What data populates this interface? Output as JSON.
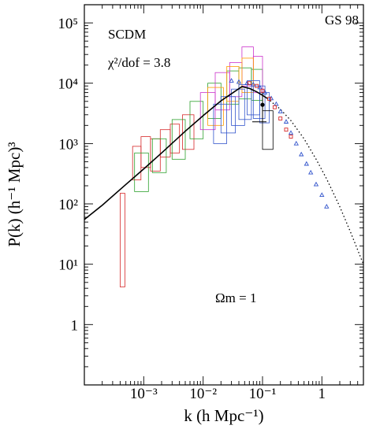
{
  "chart_data": {
    "type": "line",
    "title": "",
    "xlabel": "k (h Mpc⁻¹)",
    "ylabel": "P(k) (h⁻¹ Mpc)³",
    "x_scale": "log",
    "y_scale": "log",
    "xlim": [
      0.0001,
      5
    ],
    "ylim": [
      0.1,
      200000
    ],
    "grid": false,
    "x_ticks": [
      {
        "value": 0.001,
        "label": "10⁻³"
      },
      {
        "value": 0.01,
        "label": "10⁻²"
      },
      {
        "value": 0.1,
        "label": "10⁻¹"
      },
      {
        "value": 1,
        "label": "1"
      }
    ],
    "y_ticks": [
      {
        "value": 1,
        "label": "1"
      },
      {
        "value": 10,
        "label": "10¹"
      },
      {
        "value": 100,
        "label": "10²"
      },
      {
        "value": 1000,
        "label": "10³"
      },
      {
        "value": 10000,
        "label": "10⁴"
      },
      {
        "value": 100000,
        "label": "10⁵"
      }
    ],
    "annotations": {
      "model": "SCDM",
      "chi2": "χ²/dof = 3.8",
      "corner": "GS 98",
      "omega": "Ωm = 1"
    },
    "series": [
      {
        "style": "solid",
        "x": [
          0.0001,
          0.0002,
          0.0005,
          0.001,
          0.002,
          0.005,
          0.01,
          0.02,
          0.03,
          0.045,
          0.06,
          0.08,
          0.1,
          0.12
        ],
        "y": [
          55,
          95,
          210,
          380,
          700,
          1600,
          2900,
          5100,
          6700,
          8800,
          8200,
          7200,
          6300,
          5600
        ]
      },
      {
        "style": "dotted",
        "x": [
          0.12,
          0.2,
          0.3,
          0.5,
          0.8,
          1.2,
          2,
          3,
          5
        ],
        "y": [
          5600,
          3700,
          2400,
          1200,
          550,
          260,
          90,
          35,
          10
        ]
      }
    ],
    "error_boxes": [
      {
        "x": [
          0.0004,
          0.00048
        ],
        "y": [
          4.2,
          150
        ],
        "color": "#d62728"
      },
      {
        "x": [
          0.00065,
          0.0009
        ],
        "y": [
          250,
          900
        ],
        "color": "#d62728"
      },
      {
        "x": [
          0.0009,
          0.0013
        ],
        "y": [
          400,
          1300
        ],
        "color": "#d62728"
      },
      {
        "x": [
          0.0013,
          0.0019
        ],
        "y": [
          350,
          1200
        ],
        "color": "#d62728"
      },
      {
        "x": [
          0.0019,
          0.0028
        ],
        "y": [
          600,
          1700
        ],
        "color": "#d62728"
      },
      {
        "x": [
          0.0028,
          0.004
        ],
        "y": [
          700,
          2100
        ],
        "color": "#d62728"
      },
      {
        "x": [
          0.0045,
          0.007
        ],
        "y": [
          800,
          3000
        ],
        "color": "#d62728"
      },
      {
        "x": [
          0.0007,
          0.0012
        ],
        "y": [
          160,
          700
        ],
        "color": "#2ca02c"
      },
      {
        "x": [
          0.0014,
          0.0024
        ],
        "y": [
          330,
          1200
        ],
        "color": "#2ca02c"
      },
      {
        "x": [
          0.003,
          0.005
        ],
        "y": [
          550,
          2500
        ],
        "color": "#2ca02c"
      },
      {
        "x": [
          0.006,
          0.01
        ],
        "y": [
          1200,
          5000
        ],
        "color": "#2ca02c"
      },
      {
        "x": [
          0.012,
          0.02
        ],
        "y": [
          2600,
          10000
        ],
        "color": "#2ca02c"
      },
      {
        "x": [
          0.025,
          0.04
        ],
        "y": [
          4500,
          16000
        ],
        "color": "#2ca02c"
      },
      {
        "x": [
          0.04,
          0.065
        ],
        "y": [
          5500,
          18000
        ],
        "color": "#2ca02c"
      },
      {
        "x": [
          0.065,
          0.1
        ],
        "y": [
          5200,
          17000
        ],
        "color": "#2ca02c"
      },
      {
        "x": [
          0.009,
          0.016
        ],
        "y": [
          1700,
          7000
        ],
        "color": "#cc33cc"
      },
      {
        "x": [
          0.016,
          0.028
        ],
        "y": [
          3600,
          15000
        ],
        "color": "#cc33cc"
      },
      {
        "x": [
          0.028,
          0.045
        ],
        "y": [
          6000,
          22000
        ],
        "color": "#cc33cc"
      },
      {
        "x": [
          0.045,
          0.07
        ],
        "y": [
          9000,
          40000
        ],
        "color": "#cc33cc"
      },
      {
        "x": [
          0.07,
          0.1
        ],
        "y": [
          7000,
          28000
        ],
        "color": "#cc33cc"
      },
      {
        "x": [
          0.012,
          0.022
        ],
        "y": [
          2000,
          8500
        ],
        "color": "#ff9900"
      },
      {
        "x": [
          0.025,
          0.04
        ],
        "y": [
          5000,
          19000
        ],
        "color": "#ff9900"
      },
      {
        "x": [
          0.045,
          0.07
        ],
        "y": [
          7000,
          26000
        ],
        "color": "#ff9900"
      },
      {
        "x": [
          0.015,
          0.025
        ],
        "y": [
          1000,
          4500
        ],
        "color": "#3355cc"
      },
      {
        "x": [
          0.02,
          0.035
        ],
        "y": [
          1500,
          6000
        ],
        "color": "#3355cc"
      },
      {
        "x": [
          0.03,
          0.05
        ],
        "y": [
          2000,
          8000
        ],
        "color": "#3355cc"
      },
      {
        "x": [
          0.04,
          0.065
        ],
        "y": [
          2500,
          9500
        ],
        "color": "#3355cc"
      },
      {
        "x": [
          0.055,
          0.09
        ],
        "y": [
          3000,
          11000
        ],
        "color": "#3355cc"
      },
      {
        "x": [
          0.07,
          0.11
        ],
        "y": [
          2600,
          9000
        ],
        "color": "#3355cc"
      },
      {
        "x": [
          0.09,
          0.13
        ],
        "y": [
          2200,
          7000
        ],
        "color": "#3355cc"
      },
      {
        "x": [
          0.1,
          0.15
        ],
        "y": [
          800,
          3500
        ],
        "color": "#000000"
      }
    ],
    "markers": [
      {
        "shape": "triangle",
        "color": "#3355cc",
        "x": [
          0.03,
          0.04,
          0.055,
          0.07,
          0.09,
          0.11,
          0.14,
          0.17,
          0.2,
          0.25,
          0.3,
          0.37,
          0.45,
          0.55,
          0.65,
          0.8,
          1.0,
          1.2
        ],
        "y": [
          11000,
          10500,
          10000,
          9500,
          8500,
          7000,
          5600,
          4500,
          3400,
          2300,
          1500,
          1000,
          660,
          460,
          330,
          210,
          140,
          90
        ]
      },
      {
        "shape": "square",
        "color": "#d62728",
        "x": [
          0.06,
          0.08,
          0.1,
          0.13,
          0.16,
          0.2,
          0.25,
          0.3
        ],
        "y": [
          10000,
          9000,
          7500,
          5500,
          4000,
          2600,
          1700,
          1300
        ]
      },
      {
        "shape": "dot",
        "color": "#000000",
        "x": [
          0.1
        ],
        "y": [
          4400
        ]
      }
    ],
    "error_bars": [
      {
        "x": 0.1,
        "y_low": 2300,
        "y_high": 7000,
        "color": "#000000"
      }
    ]
  }
}
